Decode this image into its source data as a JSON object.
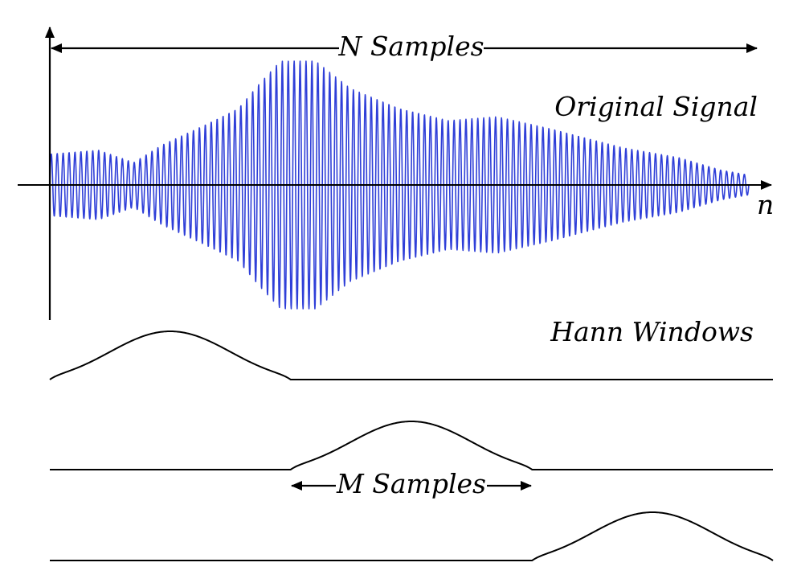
{
  "labels": {
    "n_samples": "N Samples",
    "original_signal": "Original Signal",
    "axis_n": "n",
    "hann_windows": "Hann Windows",
    "m_samples": "M Samples"
  },
  "colors": {
    "signal": "#2f3fd8",
    "ink": "#000000",
    "background": "#ffffff"
  },
  "diagram": {
    "signal": {
      "cycles": 118,
      "envelope": [
        [
          0.0,
          0.25
        ],
        [
          0.07,
          0.28
        ],
        [
          0.12,
          0.18
        ],
        [
          0.16,
          0.32
        ],
        [
          0.22,
          0.48
        ],
        [
          0.27,
          0.62
        ],
        [
          0.3,
          0.82
        ],
        [
          0.33,
          1.0
        ],
        [
          0.38,
          1.0
        ],
        [
          0.43,
          0.78
        ],
        [
          0.5,
          0.62
        ],
        [
          0.57,
          0.52
        ],
        [
          0.64,
          0.55
        ],
        [
          0.72,
          0.45
        ],
        [
          0.82,
          0.3
        ],
        [
          0.9,
          0.22
        ],
        [
          0.96,
          0.12
        ],
        [
          1.0,
          0.08
        ]
      ]
    },
    "hann_windows": [
      {
        "name": "window-1",
        "start": 0.0,
        "end": 0.333
      },
      {
        "name": "window-2",
        "start": 0.333,
        "end": 0.667
      },
      {
        "name": "window-3",
        "start": 0.667,
        "end": 1.0
      }
    ]
  }
}
